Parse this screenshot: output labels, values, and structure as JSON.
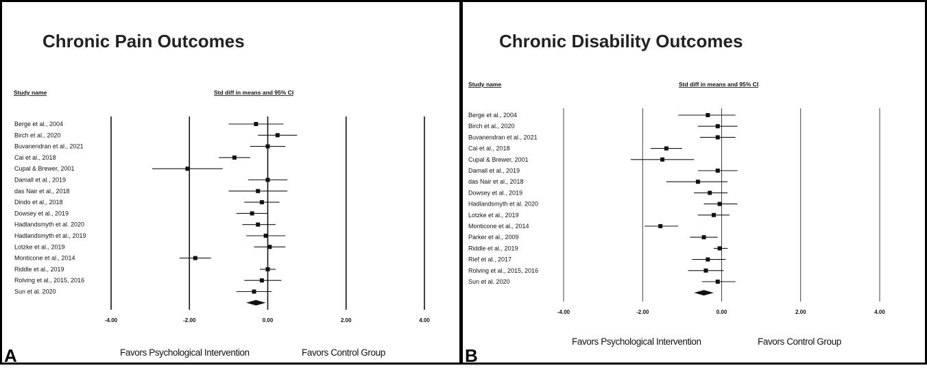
{
  "chart_data": [
    {
      "type": "forest",
      "panel": "A",
      "title": "Chronic Pain Outcomes",
      "study_header": "Study name",
      "effect_header": "Std diff in means and 95%  CI",
      "x_ticks": [
        "-4.00",
        "-2.00",
        "0.00",
        "2.00",
        "4.00"
      ],
      "xlim": [
        -4,
        4
      ],
      "favors_left": "Favors Psychological Intervention",
      "favors_right": "Favors Control Group",
      "studies": [
        {
          "name": "Berge et al., 2004",
          "est": -0.3,
          "lo": -1.0,
          "hi": 0.4
        },
        {
          "name": "Birch et al., 2020",
          "est": 0.25,
          "lo": -0.25,
          "hi": 0.75
        },
        {
          "name": "Buvanendran et al., 2021",
          "est": 0.0,
          "lo": -0.45,
          "hi": 0.45
        },
        {
          "name": "Cai et al., 2018",
          "est": -0.85,
          "lo": -1.25,
          "hi": -0.45
        },
        {
          "name": "Cupal & Brewer, 2001",
          "est": -2.05,
          "lo": -2.95,
          "hi": -1.15
        },
        {
          "name": "Damall et al., 2019",
          "est": 0.0,
          "lo": -0.5,
          "hi": 0.5
        },
        {
          "name": "das Nair et al., 2018",
          "est": -0.25,
          "lo": -1.0,
          "hi": 0.5
        },
        {
          "name": "Dindo et al., 2018",
          "est": -0.15,
          "lo": -0.6,
          "hi": 0.3
        },
        {
          "name": "Dowsey et al., 2019",
          "est": -0.4,
          "lo": -0.8,
          "hi": 0.0
        },
        {
          "name": "Hadlandsmyth et al. 2020",
          "est": -0.25,
          "lo": -0.65,
          "hi": 0.2
        },
        {
          "name": "Hadlandsmyth et al., 2019",
          "est": -0.05,
          "lo": -0.55,
          "hi": 0.45
        },
        {
          "name": "Lotzke et al., 2019",
          "est": 0.05,
          "lo": -0.35,
          "hi": 0.45
        },
        {
          "name": "Monticone et al., 2014",
          "est": -1.85,
          "lo": -2.25,
          "hi": -1.45
        },
        {
          "name": "Riddle et al., 2019",
          "est": 0.0,
          "lo": -0.2,
          "hi": 0.2
        },
        {
          "name": "Rolving et al., 2015, 2016",
          "est": -0.15,
          "lo": -0.6,
          "hi": 0.35
        },
        {
          "name": "Sun et al. 2020",
          "est": -0.35,
          "lo": -0.8,
          "hi": 0.1
        }
      ],
      "pooled": {
        "est": -0.3,
        "lo": -0.55,
        "hi": -0.05
      }
    },
    {
      "type": "forest",
      "panel": "B",
      "title": "Chronic Disability Outcomes",
      "study_header": "Study name",
      "effect_header": "Std diff in means and 95%  CI",
      "x_ticks": [
        "-4.00",
        "-2.00",
        "0.00",
        "2.00",
        "4.00"
      ],
      "xlim": [
        -4,
        4
      ],
      "favors_left": "Favors Psychological Intervention",
      "favors_right": "Favors Control Group",
      "studies": [
        {
          "name": "Berge et al., 2004",
          "est": -0.35,
          "lo": -1.1,
          "hi": 0.35
        },
        {
          "name": "Birch et al., 2020",
          "est": -0.1,
          "lo": -0.6,
          "hi": 0.4
        },
        {
          "name": "Buvanendran et al., 2021",
          "est": -0.1,
          "lo": -0.55,
          "hi": 0.35
        },
        {
          "name": "Cai et al., 2018",
          "est": -1.4,
          "lo": -1.8,
          "hi": -1.0
        },
        {
          "name": "Cupal & Brewer, 2001",
          "est": -1.5,
          "lo": -2.3,
          "hi": -0.7
        },
        {
          "name": "Damall et al., 2019",
          "est": -0.1,
          "lo": -0.6,
          "hi": 0.4
        },
        {
          "name": "das Nair et al., 2018",
          "est": -0.6,
          "lo": -1.4,
          "hi": 0.15
        },
        {
          "name": "Dowsey et al., 2019",
          "est": -0.3,
          "lo": -0.7,
          "hi": 0.15
        },
        {
          "name": "Hadlandsmyth et al. 2020",
          "est": -0.05,
          "lo": -0.45,
          "hi": 0.4
        },
        {
          "name": "Lotzke et al., 2019",
          "est": -0.2,
          "lo": -0.6,
          "hi": 0.2
        },
        {
          "name": "Monticone et al., 2014",
          "est": -1.55,
          "lo": -1.95,
          "hi": -1.1
        },
        {
          "name": "Parker et al., 2009",
          "est": -0.45,
          "lo": -0.8,
          "hi": -0.1
        },
        {
          "name": "Riddle et al., 2019",
          "est": -0.05,
          "lo": -0.2,
          "hi": 0.15
        },
        {
          "name": "Rief et al., 2017",
          "est": -0.35,
          "lo": -0.75,
          "hi": 0.1
        },
        {
          "name": "Rolving et al., 2015, 2016",
          "est": -0.4,
          "lo": -0.85,
          "hi": 0.05
        },
        {
          "name": "Sun et al. 2020",
          "est": -0.1,
          "lo": -0.5,
          "hi": 0.35
        }
      ],
      "pooled": {
        "est": -0.45,
        "lo": -0.7,
        "hi": -0.2
      }
    }
  ]
}
